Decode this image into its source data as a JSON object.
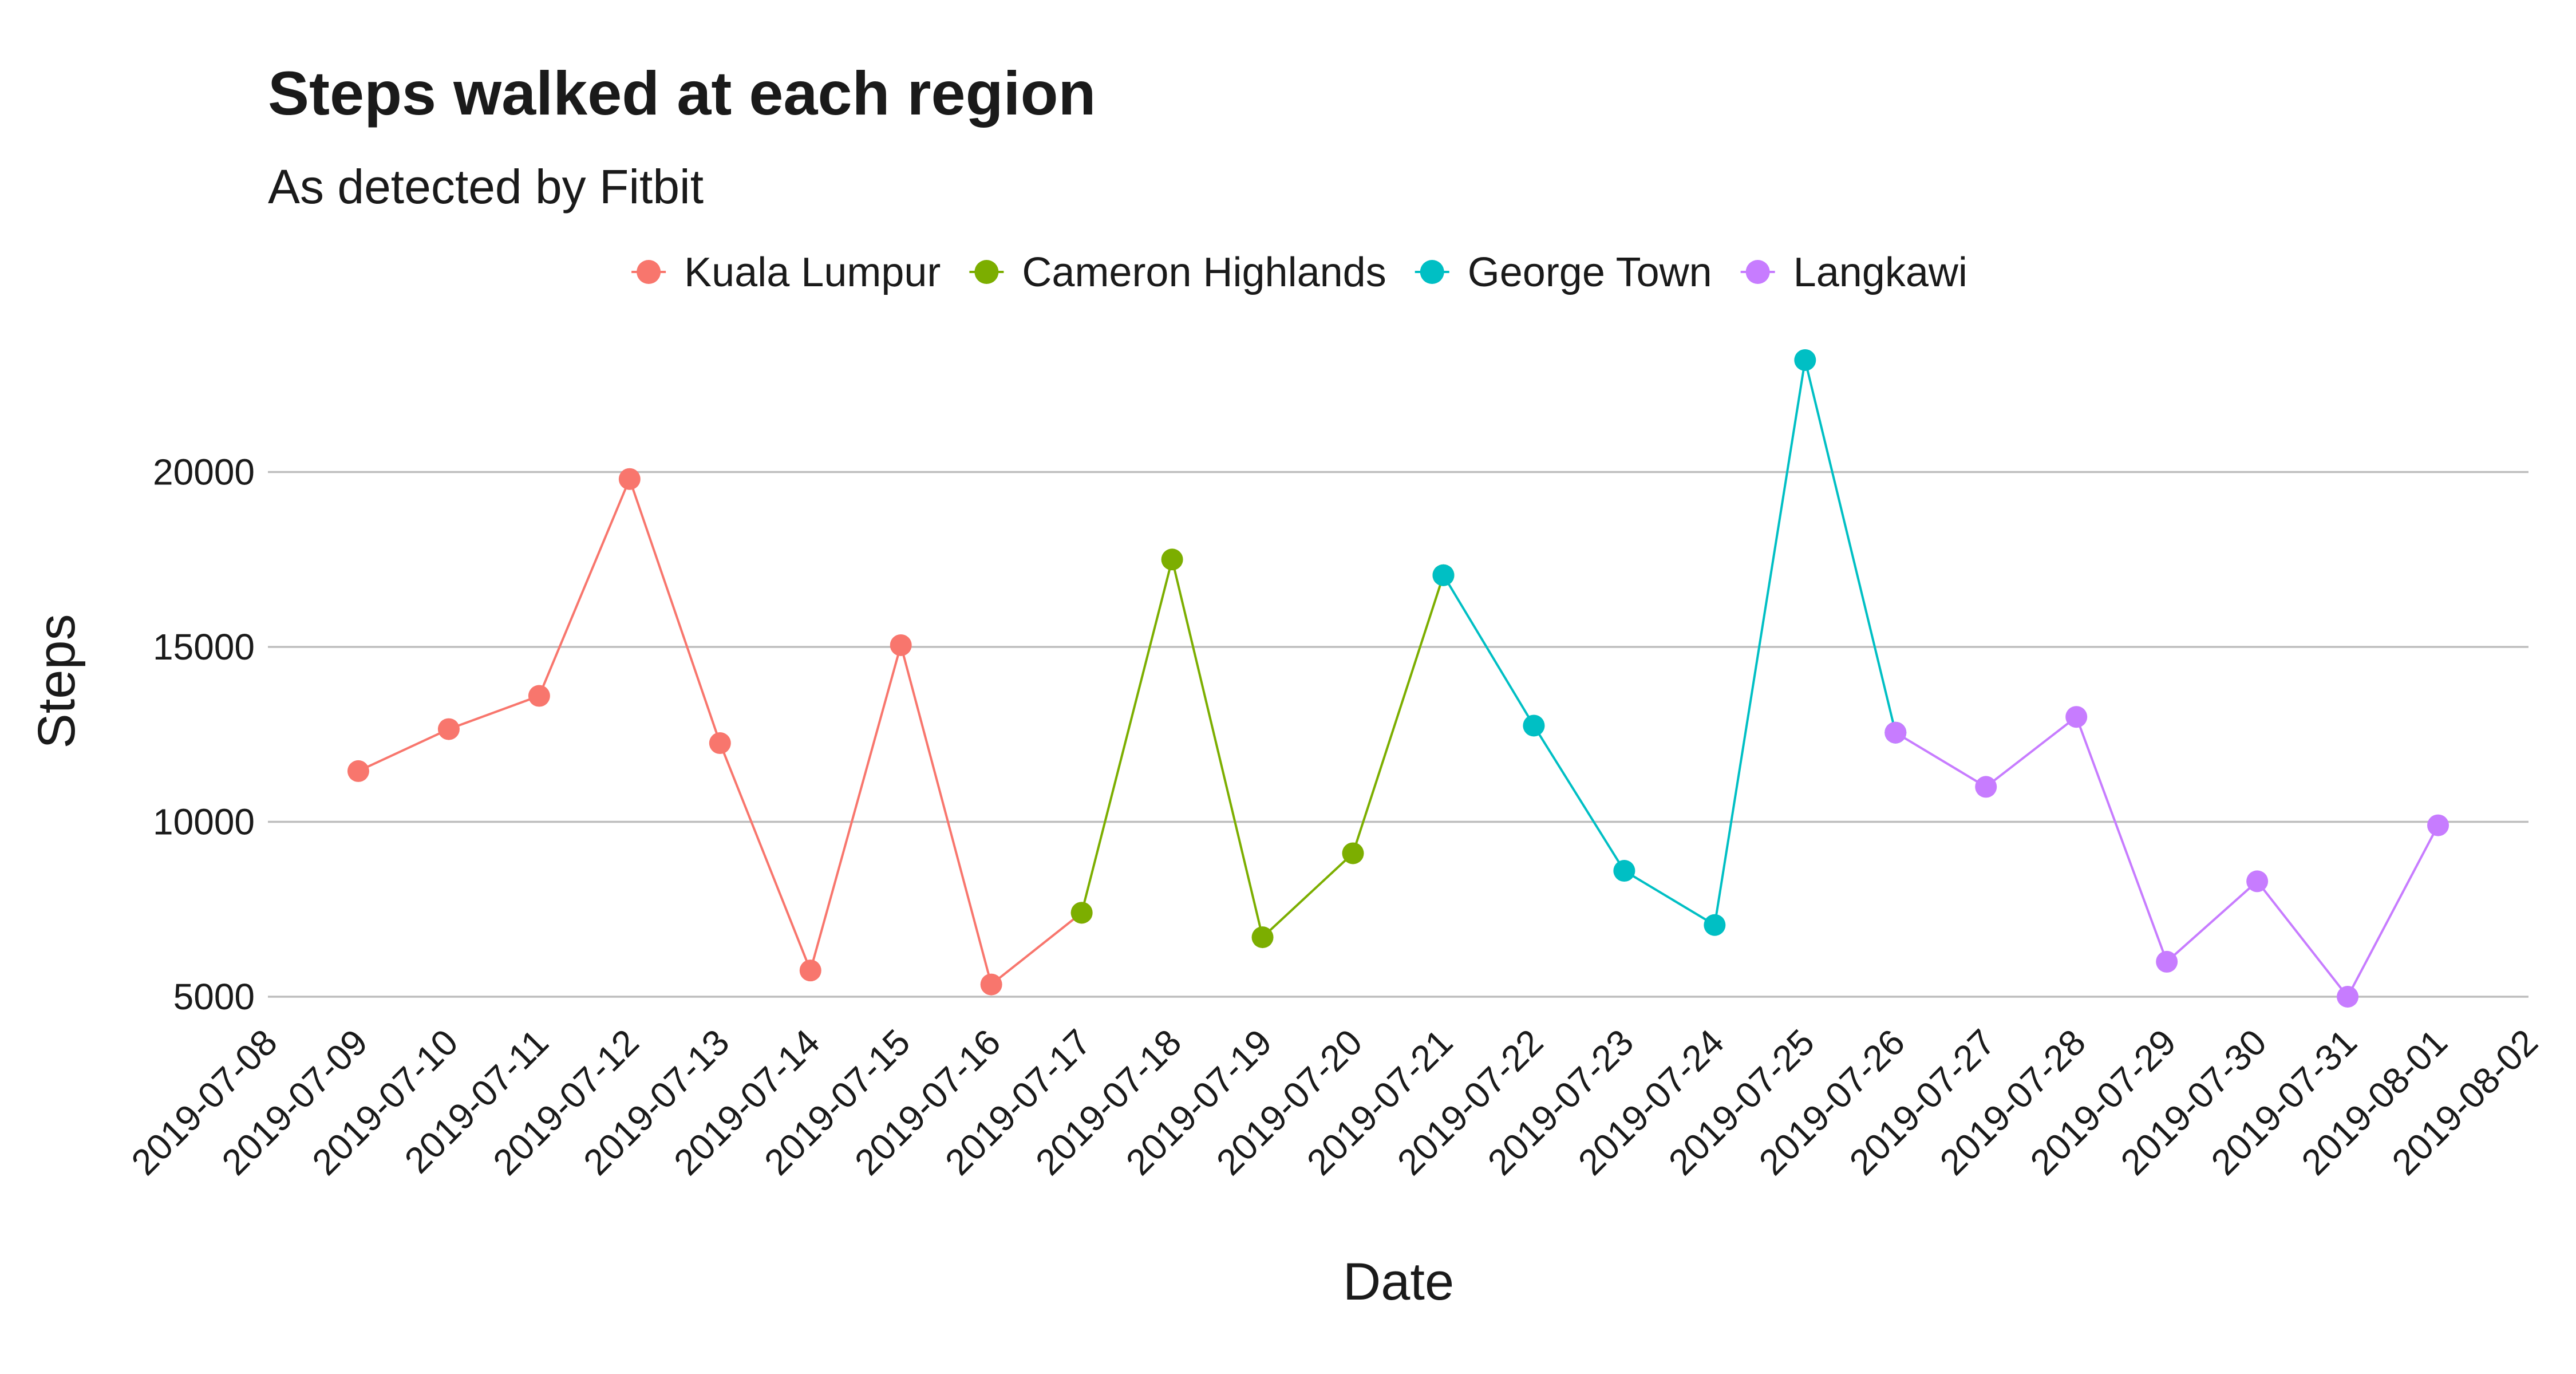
{
  "chart_data": {
    "type": "line",
    "title": "Steps walked at each region",
    "subtitle": "As detected by Fitbit",
    "xlabel": "Date",
    "ylabel": "Steps",
    "legend_position": "top",
    "grid": "horizontal major",
    "xlim": [
      "2019-07-08",
      "2019-08-02"
    ],
    "x_ticks": [
      "2019-07-08",
      "2019-07-09",
      "2019-07-10",
      "2019-07-11",
      "2019-07-12",
      "2019-07-13",
      "2019-07-14",
      "2019-07-15",
      "2019-07-16",
      "2019-07-17",
      "2019-07-18",
      "2019-07-19",
      "2019-07-20",
      "2019-07-21",
      "2019-07-22",
      "2019-07-23",
      "2019-07-24",
      "2019-07-25",
      "2019-07-26",
      "2019-07-27",
      "2019-07-28",
      "2019-07-29",
      "2019-07-30",
      "2019-07-31",
      "2019-08-01",
      "2019-08-02"
    ],
    "y_ticks": [
      5000,
      10000,
      15000,
      20000
    ],
    "series": [
      {
        "name": "Kuala Lumpur",
        "color": "#F8766D",
        "x": [
          "2019-07-09",
          "2019-07-10",
          "2019-07-11",
          "2019-07-12",
          "2019-07-13",
          "2019-07-14",
          "2019-07-15",
          "2019-07-16",
          "2019-07-17"
        ],
        "values": [
          11450,
          12650,
          13600,
          19800,
          12250,
          5750,
          15050,
          5350,
          7400
        ]
      },
      {
        "name": "Cameron Highlands",
        "color": "#7CAE00",
        "x": [
          "2019-07-17",
          "2019-07-18",
          "2019-07-19",
          "2019-07-20",
          "2019-07-21"
        ],
        "values": [
          7400,
          17500,
          6700,
          9100,
          17050
        ]
      },
      {
        "name": "George Town",
        "color": "#00BFC4",
        "x": [
          "2019-07-21",
          "2019-07-22",
          "2019-07-23",
          "2019-07-24",
          "2019-07-25",
          "2019-07-26"
        ],
        "values": [
          17050,
          12750,
          8600,
          7050,
          23200,
          12550
        ]
      },
      {
        "name": "Langkawi",
        "color": "#C77CFF",
        "x": [
          "2019-07-26",
          "2019-07-27",
          "2019-07-28",
          "2019-07-29",
          "2019-07-30",
          "2019-07-31",
          "2019-08-01"
        ],
        "values": [
          12550,
          11000,
          13000,
          6000,
          8300,
          5000,
          9900
        ]
      }
    ]
  }
}
